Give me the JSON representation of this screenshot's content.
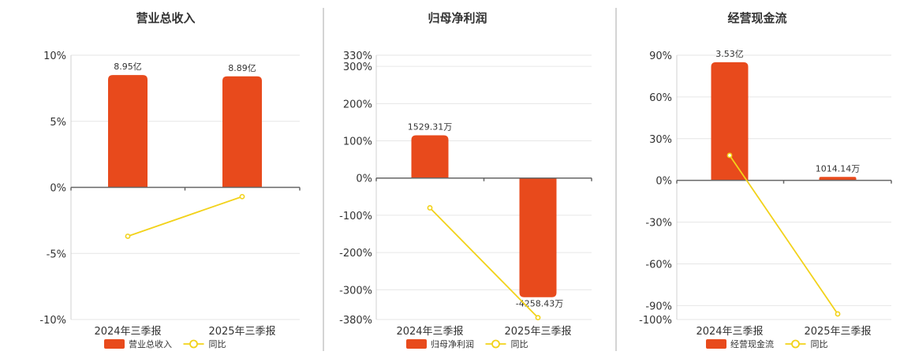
{
  "colors": {
    "bar": "#E84A1C",
    "line": "#F2D21A",
    "grid": "#e6e6e6",
    "axis": "#666666"
  },
  "chart_data": [
    {
      "type": "bar",
      "title": "营业总收入",
      "categories": [
        "2024年三季报",
        "2025年三季报"
      ],
      "ylim": [
        -10,
        10
      ],
      "yticks": [
        10,
        5,
        0,
        -5,
        -10
      ],
      "ytick_labels": [
        "10%",
        "5%",
        "0%",
        "-5%",
        "-10%"
      ],
      "series": [
        {
          "name": "营业总收入",
          "kind": "bar",
          "values": [
            8.5,
            8.4
          ],
          "labels": [
            "8.95亿",
            "8.89亿"
          ]
        },
        {
          "name": "同比",
          "kind": "line",
          "values": [
            -3.7,
            -0.7
          ]
        }
      ],
      "grid": true,
      "legend_position": "bottom"
    },
    {
      "type": "bar",
      "title": "归母净利润",
      "categories": [
        "2024年三季报",
        "2025年三季报"
      ],
      "ylim": [
        -380,
        330
      ],
      "yticks": [
        330,
        300,
        200,
        100,
        0,
        -100,
        -200,
        -300,
        -380
      ],
      "ytick_labels": [
        "330%",
        "300%",
        "200%",
        "100%",
        "0%",
        "-100%",
        "-200%",
        "-300%",
        "-380%"
      ],
      "series": [
        {
          "name": "归母净利润",
          "kind": "bar",
          "values": [
            115,
            -320
          ],
          "labels": [
            "1529.31万",
            "-4258.43万"
          ]
        },
        {
          "name": "同比",
          "kind": "line",
          "values": [
            -80,
            -375
          ]
        }
      ],
      "grid": true,
      "legend_position": "bottom"
    },
    {
      "type": "bar",
      "title": "经营现金流",
      "categories": [
        "2024年三季报",
        "2025年三季报"
      ],
      "ylim": [
        -100,
        90
      ],
      "yticks": [
        90,
        60,
        30,
        0,
        -30,
        -60,
        -90,
        -100
      ],
      "ytick_labels": [
        "90%",
        "60%",
        "30%",
        "0%",
        "-30%",
        "-60%",
        "-90%",
        "-100%"
      ],
      "series": [
        {
          "name": "经营现金流",
          "kind": "bar",
          "values": [
            85,
            2.5
          ],
          "labels": [
            "3.53亿",
            "1014.14万"
          ]
        },
        {
          "name": "同比",
          "kind": "line",
          "values": [
            18,
            -96
          ]
        }
      ],
      "grid": true,
      "legend_position": "bottom"
    }
  ]
}
